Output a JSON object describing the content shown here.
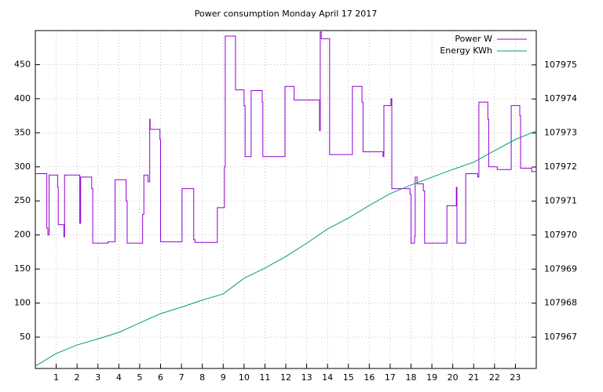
{
  "chart_data": {
    "type": "line",
    "title": "Power consumption Monday April 17 2017",
    "xlim": [
      0,
      24
    ],
    "xticks": [
      1,
      2,
      3,
      4,
      5,
      6,
      7,
      8,
      9,
      10,
      11,
      12,
      13,
      14,
      15,
      16,
      17,
      18,
      19,
      20,
      21,
      22,
      23
    ],
    "ylim": [
      4,
      500
    ],
    "yticks": [
      50,
      100,
      150,
      200,
      250,
      300,
      350,
      400,
      450
    ],
    "y2lim": [
      107966.08,
      107976.01
    ],
    "y2ticks": [
      107967,
      107968,
      107969,
      107970,
      107971,
      107972,
      107973,
      107974,
      107975
    ],
    "grid": true,
    "legend": "top-right",
    "series": [
      {
        "name": "Power W",
        "color": "#9400d3",
        "x": [
          0,
          0.55,
          0.55,
          0.6,
          0.6,
          0.66,
          0.66,
          1.07,
          1.07,
          1.1,
          1.1,
          1.37,
          1.37,
          1.4,
          1.4,
          2.13,
          2.13,
          2.17,
          2.17,
          2.7,
          2.7,
          2.75,
          2.75,
          3.48,
          3.48,
          3.82,
          3.82,
          4.35,
          4.35,
          4.4,
          4.4,
          5.14,
          5.14,
          5.2,
          5.2,
          5.4,
          5.4,
          5.48,
          5.48,
          5.5,
          5.5,
          5.97,
          5.97,
          6.0,
          6.0,
          7.03,
          7.03,
          7.59,
          7.59,
          7.65,
          7.65,
          8.72,
          8.72,
          9.06,
          9.06,
          9.1,
          9.1,
          9.59,
          9.59,
          10.0,
          10.0,
          10.05,
          10.05,
          10.34,
          10.34,
          10.87,
          10.87,
          10.9,
          10.9,
          11.96,
          11.96,
          12.4,
          12.4,
          13.62,
          13.62,
          13.65,
          13.65,
          13.7,
          13.7,
          14.1,
          14.1,
          15.19,
          15.19,
          15.65,
          15.65,
          15.7,
          15.7,
          16.66,
          16.66,
          16.7,
          16.7,
          17.04,
          17.04,
          17.08,
          17.08,
          17.95,
          17.95,
          18.0,
          18.0,
          18.17,
          18.17,
          18.2,
          18.2,
          18.29,
          18.29,
          18.59,
          18.59,
          18.65,
          18.65,
          19.72,
          19.72,
          20.17,
          20.17,
          20.2,
          20.2,
          20.62,
          20.62,
          21.19,
          21.19,
          21.25,
          21.25,
          21.68,
          21.68,
          21.72,
          21.72,
          22.13,
          22.13,
          22.8,
          22.8,
          23.21,
          23.21,
          23.25,
          23.25,
          23.78,
          23.78,
          24.0
        ],
        "values": [
          290,
          290,
          210,
          210,
          200,
          200,
          288,
          288,
          270,
          270,
          215,
          215,
          197,
          197,
          288,
          288,
          217,
          217,
          285,
          285,
          268,
          268,
          188,
          188,
          190,
          190,
          281,
          281,
          250,
          250,
          188,
          188,
          230,
          230,
          288,
          288,
          278,
          278,
          370,
          370,
          355,
          355,
          340,
          340,
          190,
          190,
          268,
          268,
          193,
          193,
          189,
          189,
          240,
          240,
          300,
          300,
          492,
          492,
          413,
          413,
          390,
          390,
          315,
          315,
          412,
          412,
          395,
          395,
          315,
          315,
          418,
          418,
          398,
          398,
          353,
          353,
          498,
          498,
          488,
          488,
          318,
          318,
          418,
          418,
          395,
          395,
          322,
          322,
          315,
          315,
          390,
          390,
          400,
          400,
          268,
          268,
          260,
          260,
          188,
          188,
          198,
          198,
          285,
          285,
          275,
          275,
          265,
          265,
          188,
          188,
          243,
          243,
          270,
          270,
          188,
          188,
          290,
          290,
          285,
          285,
          395,
          395,
          370,
          370,
          300,
          300,
          296,
          296,
          390,
          390,
          375,
          375,
          298,
          298,
          293,
          293
        ]
      },
      {
        "name": "Energy KWh",
        "color": "#009e73",
        "axis": "y2",
        "x": [
          0,
          1,
          2,
          3,
          4,
          5,
          6,
          7,
          8,
          9,
          10,
          11,
          12,
          13,
          14,
          15,
          16,
          17,
          18,
          19,
          20,
          21,
          22,
          23,
          24
        ],
        "values": [
          107966.15,
          107966.52,
          107966.77,
          107966.95,
          107967.14,
          107967.42,
          107967.69,
          107967.88,
          107968.09,
          107968.27,
          107968.73,
          107969.03,
          107969.37,
          107969.76,
          107970.18,
          107970.5,
          107970.87,
          107971.22,
          107971.47,
          107971.7,
          107971.93,
          107972.14,
          107972.48,
          107972.81,
          107973.06
        ]
      }
    ]
  }
}
